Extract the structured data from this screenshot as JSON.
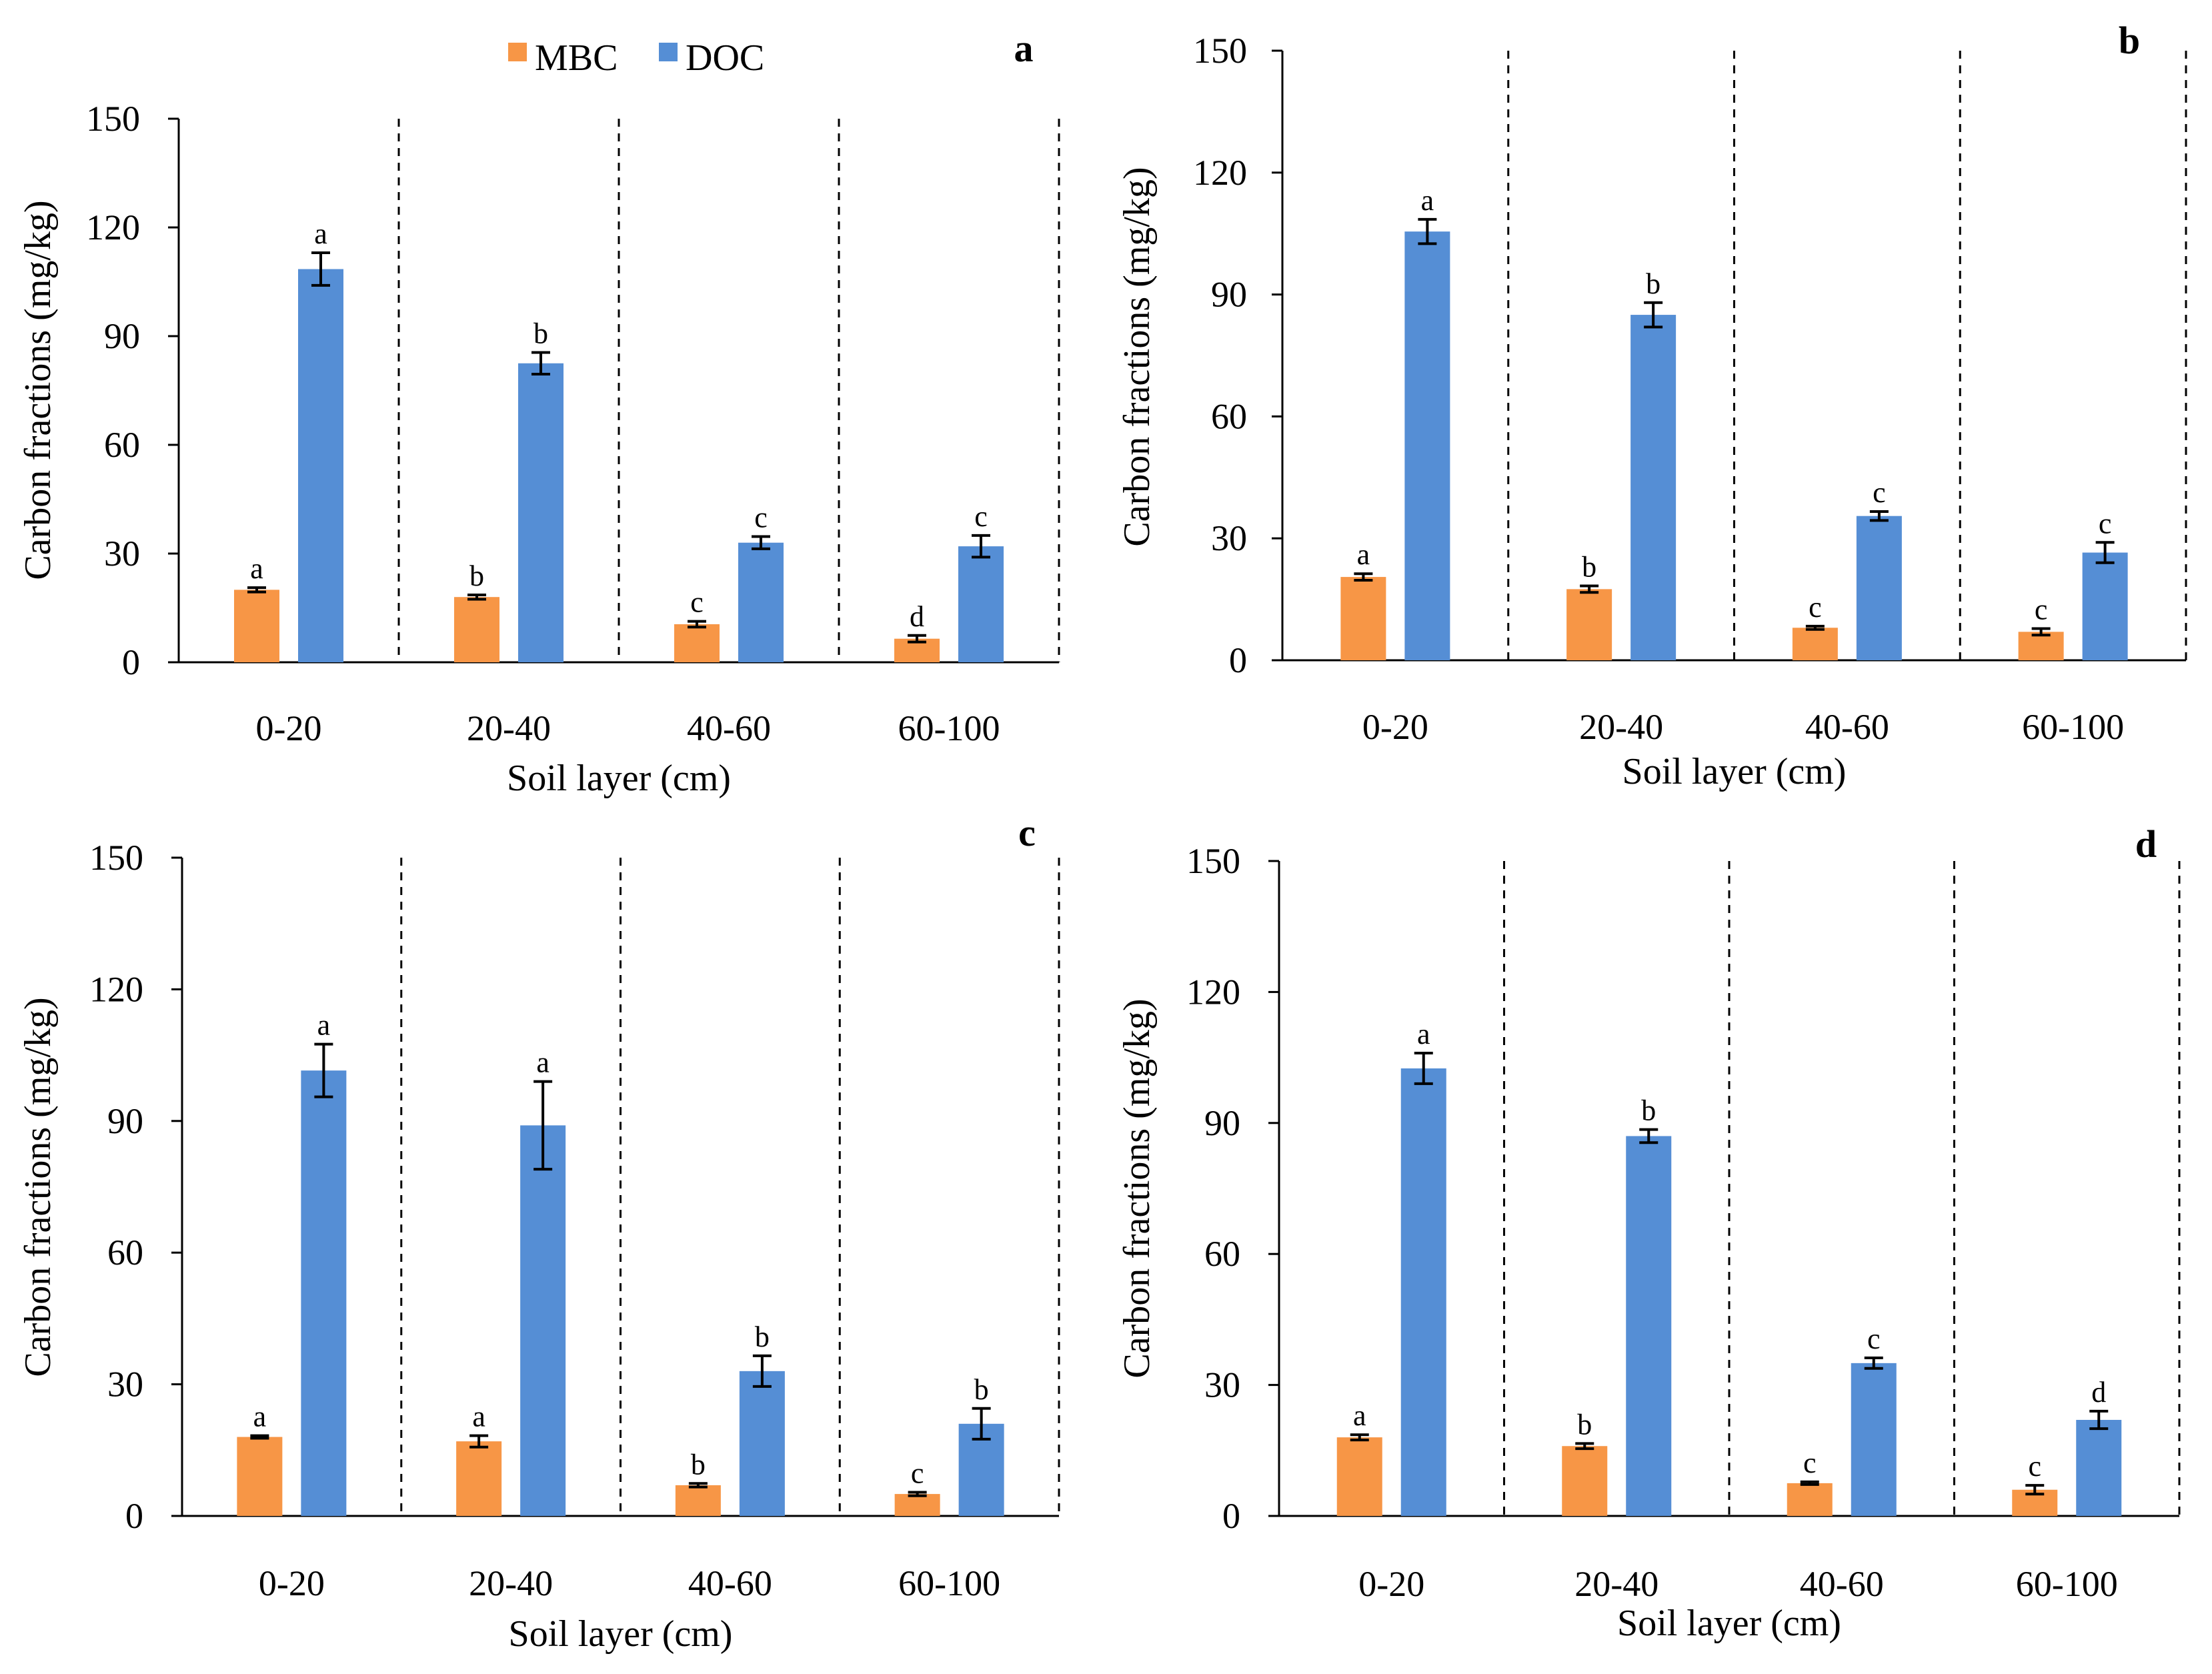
{
  "figure": {
    "legend": [
      {
        "name": "MBC",
        "color": "#f79646"
      },
      {
        "name": "DOC",
        "color": "#558ed5"
      }
    ]
  },
  "chart_data": [
    {
      "type": "bar",
      "panel": "a",
      "xlabel": "Soil layer (cm)",
      "ylabel": "Carbon fractions (mg/kg)",
      "ylim": [
        0,
        150
      ],
      "yticks": [
        0,
        30,
        60,
        90,
        120,
        150
      ],
      "categories": [
        "0-20",
        "20-40",
        "40-60",
        "60-100"
      ],
      "series": [
        {
          "name": "MBC",
          "color": "#f79646",
          "values": [
            20,
            18,
            10.5,
            6.5
          ],
          "errors": [
            0.6,
            0.6,
            0.8,
            0.9
          ],
          "letters": [
            "a",
            "b",
            "c",
            "d"
          ]
        },
        {
          "name": "DOC",
          "color": "#558ed5",
          "values": [
            108.5,
            82.5,
            33,
            32
          ],
          "errors": [
            4.5,
            3,
            1.7,
            3
          ],
          "letters": [
            "a",
            "b",
            "c",
            "c"
          ]
        }
      ]
    },
    {
      "type": "bar",
      "panel": "b",
      "xlabel": "Soil layer (cm)",
      "ylabel": "Carbon fractions (mg/kg)",
      "ylim": [
        0,
        150
      ],
      "yticks": [
        0,
        30,
        60,
        90,
        120,
        150
      ],
      "categories": [
        "0-20",
        "20-40",
        "40-60",
        "60-100"
      ],
      "series": [
        {
          "name": "MBC",
          "color": "#f79646",
          "values": [
            20.5,
            17.5,
            8,
            7
          ],
          "errors": [
            0.8,
            0.8,
            0.4,
            0.8
          ],
          "letters": [
            "a",
            "b",
            "c",
            "c"
          ]
        },
        {
          "name": "DOC",
          "color": "#558ed5",
          "values": [
            105.5,
            85,
            35.5,
            26.5
          ],
          "errors": [
            3,
            3,
            1.1,
            2.5
          ],
          "letters": [
            "a",
            "b",
            "c",
            "c"
          ]
        }
      ]
    },
    {
      "type": "bar",
      "panel": "c",
      "xlabel": "Soil layer (cm)",
      "ylabel": "Carbon fractions (mg/kg)",
      "ylim": [
        0,
        150
      ],
      "yticks": [
        0,
        30,
        60,
        90,
        120,
        150
      ],
      "categories": [
        "0-20",
        "20-40",
        "40-60",
        "60-100"
      ],
      "series": [
        {
          "name": "MBC",
          "color": "#f79646",
          "values": [
            18,
            17,
            7,
            5
          ],
          "errors": [
            0.3,
            1.3,
            0.4,
            0.4
          ],
          "letters": [
            "a",
            "a",
            "b",
            "c"
          ]
        },
        {
          "name": "DOC",
          "color": "#558ed5",
          "values": [
            101.5,
            89,
            33,
            21
          ],
          "errors": [
            6,
            10,
            3.5,
            3.5
          ],
          "letters": [
            "a",
            "a",
            "b",
            "b"
          ]
        }
      ]
    },
    {
      "type": "bar",
      "panel": "d",
      "xlabel": "Soil layer (cm)",
      "ylabel": "Carbon fractions (mg/kg)",
      "ylim": [
        0,
        150
      ],
      "yticks": [
        0,
        30,
        60,
        90,
        120,
        150
      ],
      "categories": [
        "0-20",
        "20-40",
        "40-60",
        "60-100"
      ],
      "series": [
        {
          "name": "MBC",
          "color": "#f79646",
          "values": [
            18,
            16,
            7.5,
            6
          ],
          "errors": [
            0.6,
            0.6,
            0.3,
            1
          ],
          "letters": [
            "a",
            "b",
            "c",
            "c"
          ]
        },
        {
          "name": "DOC",
          "color": "#558ed5",
          "values": [
            102.5,
            87,
            35,
            22
          ],
          "errors": [
            3.5,
            1.5,
            1.2,
            2
          ],
          "letters": [
            "a",
            "b",
            "c",
            "d"
          ]
        }
      ]
    }
  ]
}
